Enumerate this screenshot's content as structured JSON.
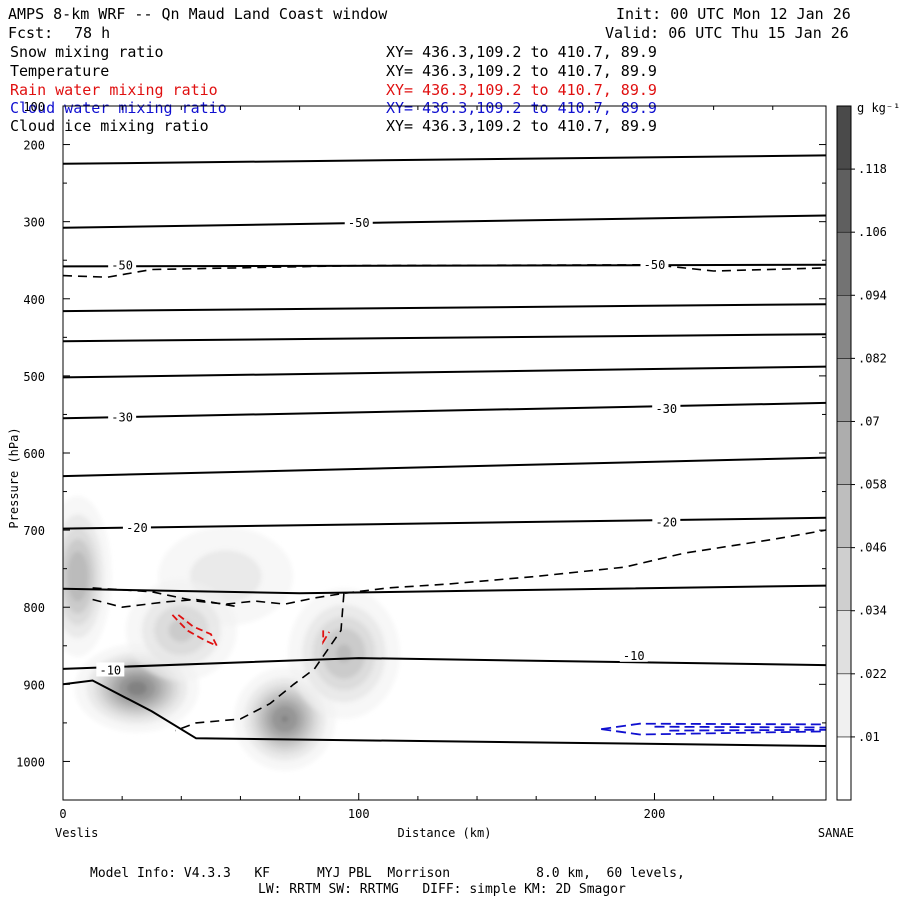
{
  "header": {
    "title_left": "AMPS 8-km WRF -- Qn Maud Land Coast window",
    "init": "Init: 00 UTC Mon 12 Jan 26",
    "fcst_label": "Fcst:",
    "fcst_value": "78 h",
    "valid": "Valid: 06 UTC Thu 15 Jan 26"
  },
  "legend_rows": [
    {
      "name": "Snow mixing ratio",
      "xy": "XY= 436.3,109.2 to 410.7, 89.9",
      "color": "#000000"
    },
    {
      "name": "Temperature",
      "xy": "XY= 436.3,109.2 to 410.7, 89.9",
      "color": "#000000"
    },
    {
      "name": "Rain water mixing ratio",
      "xy": "XY= 436.3,109.2 to 410.7, 89.9",
      "color": "#e01010"
    },
    {
      "name": "Cloud water mixing ratio",
      "xy": "XY= 436.3,109.2 to 410.7, 89.9",
      "color": "#1010d0"
    },
    {
      "name": "Cloud ice mixing ratio",
      "xy": "XY= 436.3,109.2 to 410.7, 89.9",
      "color": "#000000"
    }
  ],
  "footer": {
    "line1": "Model Info: V4.3.3   KF      MYJ PBL  Morrison           8.0 km,  60 levels,",
    "line2": "LW: RRTM SW: RRTMG   DIFF: simple KM: 2D Smagor"
  },
  "chart_data": {
    "type": "heatmap",
    "title": "AMPS 8-km WRF -- Qn Maud Land Coast window",
    "xlabel": "Distance (km)",
    "ylabel": "Pressure (hPa)",
    "x_left_label": "Veslis",
    "x_right_label": "SANAE",
    "xlim": [
      0,
      258
    ],
    "ylim": [
      1050,
      150
    ],
    "x_ticks": [
      0,
      100,
      200
    ],
    "y_ticks": [
      200,
      300,
      400,
      500,
      600,
      700,
      800,
      900,
      1000
    ],
    "y_tick_top_partial": "100",
    "colorbar": {
      "unit": "g kg⁻¹",
      "levels": [
        0.01,
        0.022,
        0.034,
        0.046,
        0.058,
        0.07,
        0.082,
        0.094,
        0.106,
        0.118
      ],
      "labels": [
        ".01",
        ".022",
        ".034",
        ".046",
        ".058",
        ".07",
        ".082",
        ".094",
        ".106",
        ".118"
      ]
    },
    "temperature_contour_labels": [
      {
        "value": "-50",
        "x": 100,
        "p": 302
      },
      {
        "value": "-50",
        "x": 20,
        "p": 357
      },
      {
        "value": "-50",
        "x": 200,
        "p": 356
      },
      {
        "value": "-30",
        "x": 20,
        "p": 554
      },
      {
        "value": "-30",
        "x": 204,
        "p": 543
      },
      {
        "value": "-30",
        "x": 204,
        "p": 543
      },
      {
        "value": "-20",
        "x": 25,
        "p": 697
      },
      {
        "value": "-20",
        "x": 204,
        "p": 690
      },
      {
        "value": "-10",
        "x": 16,
        "p": 882
      },
      {
        "value": "-10",
        "x": 193,
        "p": 863
      }
    ],
    "temperature_isotherms_p": [
      [
        [
          0,
          225
        ],
        [
          258,
          214
        ]
      ],
      [
        [
          0,
          308
        ],
        [
          258,
          292
        ]
      ],
      [
        [
          0,
          358
        ],
        [
          258,
          356
        ]
      ],
      [
        [
          0,
          416
        ],
        [
          258,
          407
        ]
      ],
      [
        [
          0,
          455
        ],
        [
          258,
          446
        ]
      ],
      [
        [
          0,
          502
        ],
        [
          258,
          488
        ]
      ],
      [
        [
          0,
          555
        ],
        [
          258,
          535
        ]
      ],
      [
        [
          0,
          630
        ],
        [
          258,
          606
        ]
      ],
      [
        [
          0,
          698
        ],
        [
          258,
          684
        ]
      ],
      [
        [
          0,
          776
        ],
        [
          80,
          782
        ],
        [
          150,
          778
        ],
        [
          258,
          772
        ]
      ],
      [
        [
          0,
          880
        ],
        [
          100,
          866
        ],
        [
          258,
          875
        ]
      ],
      [
        [
          0,
          900
        ],
        [
          10,
          895
        ],
        [
          30,
          935
        ],
        [
          45,
          970
        ],
        [
          258,
          980
        ]
      ]
    ],
    "snow_blobs": [
      {
        "x": 5,
        "p": 760,
        "amp": 0.07,
        "rx": 12,
        "rp": 110
      },
      {
        "x": 25,
        "p": 905,
        "amp": 0.1,
        "rx": 22,
        "rp": 60
      },
      {
        "x": 75,
        "p": 945,
        "amp": 0.095,
        "rx": 18,
        "rp": 70
      },
      {
        "x": 95,
        "p": 860,
        "amp": 0.06,
        "rx": 20,
        "rp": 90
      },
      {
        "x": 55,
        "p": 760,
        "amp": 0.03,
        "rx": 25,
        "rp": 70
      },
      {
        "x": 40,
        "p": 830,
        "amp": 0.05,
        "rx": 20,
        "rp": 70
      }
    ],
    "cloud_ice_dashed": [
      [
        [
          0,
          370
        ],
        [
          15,
          372
        ],
        [
          30,
          362
        ],
        [
          100,
          357
        ],
        [
          200,
          356
        ],
        [
          220,
          364
        ],
        [
          258,
          360
        ]
      ],
      [
        [
          10,
          775
        ],
        [
          30,
          780
        ],
        [
          45,
          792
        ],
        [
          55,
          796
        ],
        [
          65,
          792
        ],
        [
          75,
          796
        ],
        [
          85,
          788
        ],
        [
          95,
          782
        ],
        [
          110,
          775
        ],
        [
          130,
          770
        ],
        [
          160,
          760
        ],
        [
          190,
          748
        ],
        [
          210,
          730
        ],
        [
          240,
          712
        ],
        [
          258,
          700
        ]
      ],
      [
        [
          10,
          790
        ],
        [
          20,
          800
        ],
        [
          35,
          793
        ],
        [
          45,
          790
        ],
        [
          60,
          800
        ]
      ],
      [
        [
          95,
          782
        ],
        [
          94,
          830
        ],
        [
          85,
          880
        ],
        [
          78,
          900
        ],
        [
          70,
          925
        ],
        [
          60,
          945
        ],
        [
          45,
          950
        ],
        [
          38,
          960
        ]
      ]
    ],
    "rain_dashed": [
      [
        [
          37,
          810
        ],
        [
          42,
          830
        ],
        [
          48,
          843
        ],
        [
          52,
          850
        ],
        [
          50,
          835
        ],
        [
          44,
          825
        ],
        [
          39,
          810
        ]
      ],
      [
        [
          88,
          830
        ],
        [
          88,
          845
        ],
        [
          90,
          832
        ]
      ]
    ],
    "cloud_water_dashed": [
      [
        [
          182,
          957
        ],
        [
          200,
          950
        ],
        [
          258,
          955
        ],
        [
          220,
          965
        ],
        [
          200,
          965
        ],
        [
          185,
          962
        ]
      ]
    ]
  }
}
